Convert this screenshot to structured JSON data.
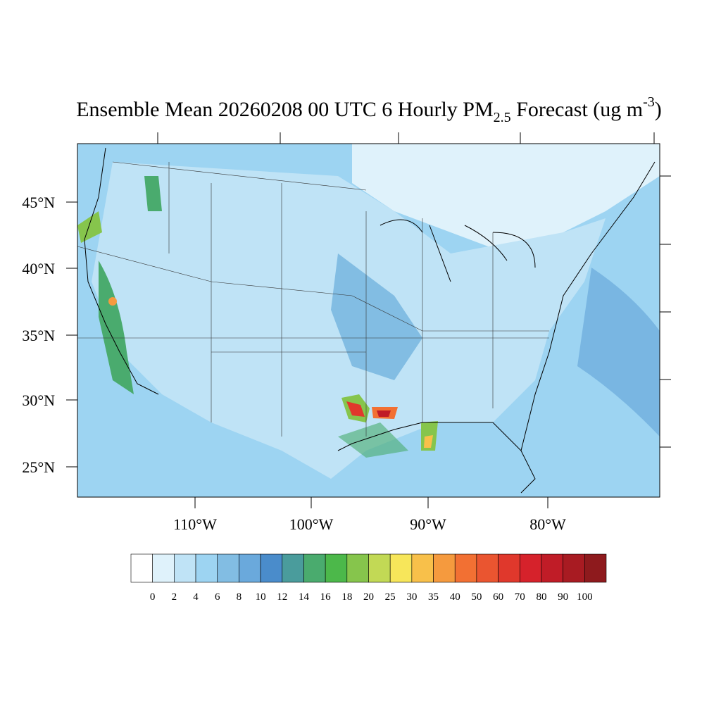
{
  "title": {
    "main": "Ensemble Mean 20260208 00 UTC 6 Hourly PM",
    "subscript": "2.5",
    "after": " Forecast (ug m",
    "superscript": "-3",
    "close": ")"
  },
  "map": {
    "lat_labels": [
      "45°N",
      "40°N",
      "35°N",
      "30°N",
      "25°N"
    ],
    "lon_labels": [
      "110°W",
      "100°W",
      "90°W",
      "80°W"
    ]
  },
  "colorbar": {
    "levels": [
      0,
      2,
      4,
      6,
      8,
      10,
      12,
      14,
      16,
      18,
      20,
      25,
      30,
      35,
      40,
      50,
      60,
      70,
      80,
      90,
      100
    ],
    "colors": [
      "#ffffff",
      "#dff2fb",
      "#bfe3f6",
      "#9dd4f2",
      "#82bde3",
      "#6aa9dc",
      "#4a8ccb",
      "#4a9c9c",
      "#4aab6e",
      "#4cb84a",
      "#86c54c",
      "#c2d955",
      "#f7e65a",
      "#f8c04a",
      "#f59a3e",
      "#f27033",
      "#ea5530",
      "#e0382c",
      "#d6222b",
      "#c01c27",
      "#a81b22",
      "#8e1a1d"
    ]
  }
}
